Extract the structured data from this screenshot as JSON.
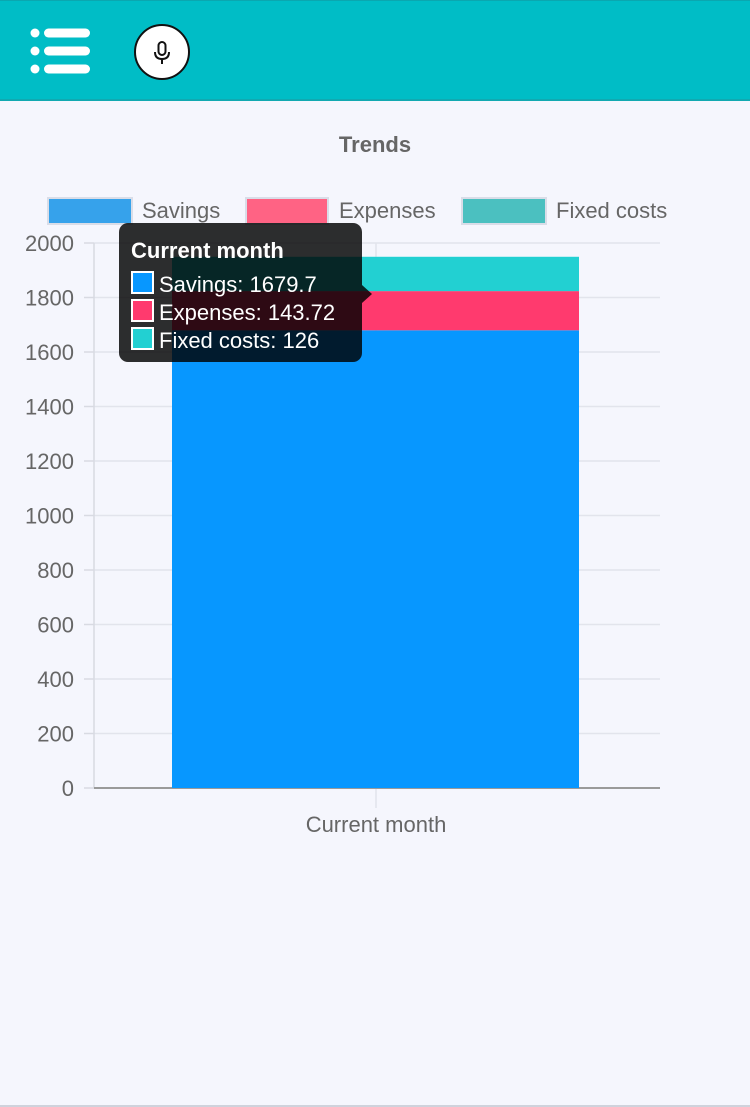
{
  "header": {
    "menu_icon": "list-menu-icon",
    "mic_icon": "microphone-icon",
    "bar_color": "#00bdc6"
  },
  "chart_data": {
    "type": "bar",
    "stacked": true,
    "title": "Trends",
    "categories": [
      "Current month"
    ],
    "series": [
      {
        "name": "Savings",
        "values": [
          1679.7
        ],
        "color": "#0797ff",
        "legend_color": "#36a2eb"
      },
      {
        "name": "Expenses",
        "values": [
          143.72
        ],
        "color": "#ff3a6e",
        "legend_color": "#ff6384"
      },
      {
        "name": "Fixed costs",
        "values": [
          126
        ],
        "color": "#22d0d2",
        "legend_color": "#4bc0c0"
      }
    ],
    "ylim": [
      0,
      2000
    ],
    "yticks": [
      "0",
      "200",
      "400",
      "600",
      "800",
      "1000",
      "1200",
      "1400",
      "1600",
      "1800",
      "2000"
    ],
    "grid": true,
    "legend_position": "top",
    "tooltip": {
      "title": "Current month",
      "lines": [
        "Savings: 1679.7",
        "Expenses: 143.72",
        "Fixed costs: 126"
      ]
    }
  }
}
